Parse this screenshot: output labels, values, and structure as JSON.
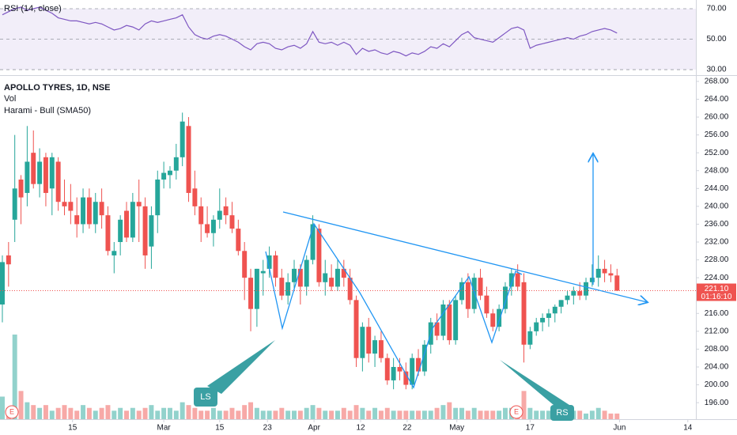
{
  "chart_data": {
    "type": "candlestick",
    "title": "APOLLO TYRES, 1D, NSE",
    "legend": [
      "Vol",
      "Harami - Bull (SMA50)"
    ],
    "up_color": "#26a69a",
    "down_color": "#ef5350",
    "x": [
      0,
      1,
      2,
      3,
      4,
      5,
      6,
      7,
      8,
      9,
      10,
      11,
      12,
      13,
      14,
      15,
      16,
      17,
      18,
      19,
      20,
      21,
      22,
      23,
      24,
      25,
      26,
      27,
      28,
      29,
      30,
      31,
      32,
      33,
      34,
      35,
      36,
      37,
      38,
      39,
      40,
      41,
      42,
      43,
      44,
      45,
      46,
      47,
      48,
      49,
      50,
      51,
      52,
      53,
      54,
      55,
      56,
      57,
      58,
      59,
      60,
      61,
      62,
      63,
      64,
      65,
      66,
      67,
      68,
      69,
      70,
      71,
      72,
      73,
      74,
      75,
      76,
      77,
      78,
      79,
      80,
      81,
      82,
      83,
      84,
      85,
      86,
      87,
      88,
      89,
      90,
      91,
      92,
      93,
      94,
      95,
      96,
      97,
      98,
      99
    ],
    "ohlc": [
      [
        218,
        229,
        214,
        227.5
      ],
      [
        229,
        232,
        222,
        227
      ],
      [
        237,
        256,
        232,
        244
      ],
      [
        246,
        247,
        236,
        242
      ],
      [
        243,
        258,
        240,
        250
      ],
      [
        252,
        257,
        244,
        245
      ],
      [
        245,
        253,
        242,
        250
      ],
      [
        251,
        252,
        240,
        243
      ],
      [
        244,
        252,
        238,
        251
      ],
      [
        250,
        251,
        239,
        241
      ],
      [
        241,
        246,
        238,
        240
      ],
      [
        241,
        245,
        236,
        239
      ],
      [
        238,
        242,
        233,
        236
      ],
      [
        236,
        244,
        234,
        242
      ],
      [
        242,
        244,
        235,
        236
      ],
      [
        236,
        243,
        234,
        241
      ],
      [
        241,
        244,
        235,
        238
      ],
      [
        238,
        240,
        229,
        230
      ],
      [
        229,
        232,
        225,
        230
      ],
      [
        232,
        238,
        229,
        237
      ],
      [
        239,
        241,
        232,
        233
      ],
      [
        233,
        243,
        232,
        241
      ],
      [
        241,
        246,
        232,
        240
      ],
      [
        240,
        242,
        226,
        229
      ],
      [
        231,
        240,
        226,
        238
      ],
      [
        238,
        248,
        234,
        246
      ],
      [
        246,
        250,
        244,
        247.5
      ],
      [
        247,
        249,
        244,
        248
      ],
      [
        248,
        254,
        246,
        251
      ],
      [
        251,
        261,
        249,
        259
      ],
      [
        258,
        260,
        241,
        243
      ],
      [
        244,
        248,
        238,
        240
      ],
      [
        240,
        242,
        232,
        236
      ],
      [
        236,
        240,
        233,
        234
      ],
      [
        234,
        238,
        231,
        237
      ],
      [
        237,
        244,
        235,
        239
      ],
      [
        240,
        242,
        236,
        238
      ],
      [
        238,
        241,
        234,
        235
      ],
      [
        235,
        237,
        229,
        230
      ],
      [
        230,
        232,
        219,
        224
      ],
      [
        224,
        226,
        212,
        217
      ],
      [
        217,
        226,
        213,
        226
      ],
      [
        225,
        228,
        220,
        225.5
      ],
      [
        226,
        231,
        224,
        229
      ],
      [
        229,
        230,
        222,
        224
      ],
      [
        224,
        226,
        219,
        220
      ],
      [
        220,
        225,
        218,
        223
      ],
      [
        223,
        228,
        221,
        226
      ],
      [
        226,
        227,
        218,
        222
      ],
      [
        222,
        229,
        220,
        228
      ],
      [
        228,
        238,
        227,
        236
      ],
      [
        235,
        236,
        222,
        223
      ],
      [
        223,
        228,
        220,
        225
      ],
      [
        224,
        227,
        221,
        222
      ],
      [
        222,
        228,
        221,
        226
      ],
      [
        226,
        228,
        222,
        224
      ],
      [
        224,
        226,
        218,
        219
      ],
      [
        219,
        220,
        204,
        206
      ],
      [
        206,
        214,
        203,
        213
      ],
      [
        213,
        215,
        205,
        207
      ],
      [
        207,
        211,
        204,
        210
      ],
      [
        210,
        212,
        205,
        206
      ],
      [
        206,
        207,
        200,
        201
      ],
      [
        201,
        206,
        199,
        204
      ],
      [
        204,
        206,
        201,
        203
      ],
      [
        203,
        205,
        199,
        200
      ],
      [
        200,
        207,
        199,
        206
      ],
      [
        206,
        208,
        202,
        203
      ],
      [
        203,
        210,
        202,
        209
      ],
      [
        209,
        215,
        207,
        214
      ],
      [
        214,
        216,
        210,
        211
      ],
      [
        211,
        219,
        210,
        218
      ],
      [
        218,
        219,
        209,
        210
      ],
      [
        210,
        220,
        209,
        219
      ],
      [
        219,
        224,
        218,
        223
      ],
      [
        223,
        225,
        215,
        217
      ],
      [
        217,
        225,
        216,
        224
      ],
      [
        224,
        226,
        219,
        220
      ],
      [
        220,
        222,
        215,
        216
      ],
      [
        216,
        217,
        212,
        213
      ],
      [
        213,
        218,
        212,
        217
      ],
      [
        217,
        223,
        216,
        222
      ],
      [
        222,
        226,
        220,
        225
      ],
      [
        225,
        227,
        221,
        222
      ],
      [
        223,
        225,
        205,
        209
      ],
      [
        209,
        213,
        208,
        212
      ],
      [
        212,
        215,
        211,
        214
      ],
      [
        214,
        216,
        212,
        215
      ],
      [
        215,
        217,
        213,
        216
      ],
      [
        216,
        218,
        214,
        217.5
      ],
      [
        217.5,
        219,
        216,
        219
      ],
      [
        219,
        221,
        218,
        220
      ],
      [
        220,
        222,
        218,
        221
      ],
      [
        221,
        223,
        219,
        220
      ],
      [
        220,
        224,
        219,
        223
      ],
      [
        223,
        227,
        222,
        224
      ],
      [
        224,
        229,
        222,
        226
      ],
      [
        226,
        228,
        223,
        225
      ],
      [
        225,
        227,
        223,
        224.5
      ],
      [
        224.5,
        226,
        221,
        221.1
      ]
    ],
    "volume": [
      8,
      4,
      30,
      10,
      6,
      5,
      4,
      5,
      3,
      4,
      5,
      4,
      3,
      5,
      4,
      3,
      4,
      5,
      3,
      4,
      3,
      4,
      3,
      4,
      5,
      3,
      4,
      4,
      3,
      6,
      5,
      4,
      3,
      3,
      4,
      3,
      3,
      4,
      3,
      5,
      6,
      4,
      3,
      3,
      3,
      4,
      3,
      3,
      3,
      4,
      5,
      4,
      3,
      3,
      3,
      4,
      3,
      5,
      4,
      3,
      4,
      3,
      4,
      3,
      3,
      3,
      3,
      3,
      3,
      3,
      4,
      5,
      6,
      4,
      4,
      3,
      4,
      3,
      3,
      3,
      3,
      4,
      4,
      3,
      10,
      4,
      3,
      3,
      3,
      2,
      3,
      3,
      3,
      3,
      2,
      3,
      4,
      3,
      2,
      2
    ],
    "xlim": [
      -0.38,
      111.7
    ],
    "xticks": [
      {
        "value": 11.3,
        "label": "15"
      },
      {
        "value": 26,
        "label": "Mar"
      },
      {
        "value": 35,
        "label": "15"
      },
      {
        "value": 42.7,
        "label": "23"
      },
      {
        "value": 50.2,
        "label": "Apr"
      },
      {
        "value": 57.7,
        "label": "12"
      },
      {
        "value": 65.2,
        "label": "22"
      },
      {
        "value": 73.2,
        "label": "May"
      },
      {
        "value": 85,
        "label": "17"
      },
      {
        "value": 99.4,
        "label": "Jun"
      },
      {
        "value": 110.4,
        "label": "14"
      }
    ],
    "ylim": [
      192.3,
      269.4
    ],
    "yticks": [
      {
        "value": 268,
        "label": "268.00"
      },
      {
        "value": 264,
        "label": "264.00"
      },
      {
        "value": 260,
        "label": "260.00"
      },
      {
        "value": 256,
        "label": "256.00"
      },
      {
        "value": 252,
        "label": "252.00"
      },
      {
        "value": 248,
        "label": "248.00"
      },
      {
        "value": 244,
        "label": "244.00"
      },
      {
        "value": 240,
        "label": "240.00"
      },
      {
        "value": 236,
        "label": "236.00"
      },
      {
        "value": 232,
        "label": "232.00"
      },
      {
        "value": 228,
        "label": "228.00"
      },
      {
        "value": 224,
        "label": "224.00"
      },
      {
        "value": 220,
        "label": "220.00"
      },
      {
        "value": 216,
        "label": "216.00"
      },
      {
        "value": 212,
        "label": "212.00"
      },
      {
        "value": 208,
        "label": "208.00"
      },
      {
        "value": 204,
        "label": "204.00"
      },
      {
        "value": 200,
        "label": "200.00"
      },
      {
        "value": 196,
        "label": "196.00"
      }
    ],
    "last_price": {
      "value": 221.1,
      "label": "221.10"
    },
    "countdown": "01:16:10",
    "rsi": {
      "title": "RSI (14, close)",
      "color": "#7e57c2",
      "values": [
        66,
        68,
        70,
        71,
        69,
        70,
        71,
        69,
        67,
        64,
        63,
        62,
        62,
        61,
        60,
        61,
        60,
        58,
        56,
        57,
        59,
        58,
        56,
        60,
        62,
        61,
        62,
        63,
        64,
        66,
        58,
        53,
        51,
        50,
        52,
        53,
        52,
        50,
        48,
        45,
        43,
        47,
        48,
        47,
        44,
        43,
        45,
        46,
        44,
        47,
        55,
        48,
        47,
        48,
        46,
        48,
        46,
        40,
        44,
        42,
        43,
        41,
        40,
        42,
        41,
        39,
        41,
        40,
        42,
        45,
        44,
        47,
        45,
        49,
        53,
        55,
        51,
        50,
        49,
        48,
        51,
        54,
        57,
        58,
        56,
        44,
        46,
        47,
        48,
        49,
        50,
        51,
        50,
        52,
        53,
        55,
        56,
        57,
        56,
        54
      ],
      "ylim": [
        26.4,
        75.7
      ],
      "yticks": [
        {
          "value": 70,
          "label": "70.00"
        },
        {
          "value": 50,
          "label": "50.00"
        },
        {
          "value": 30,
          "label": "30.00"
        }
      ]
    },
    "annotations": [
      "LS",
      "RS",
      "E",
      "E"
    ]
  }
}
